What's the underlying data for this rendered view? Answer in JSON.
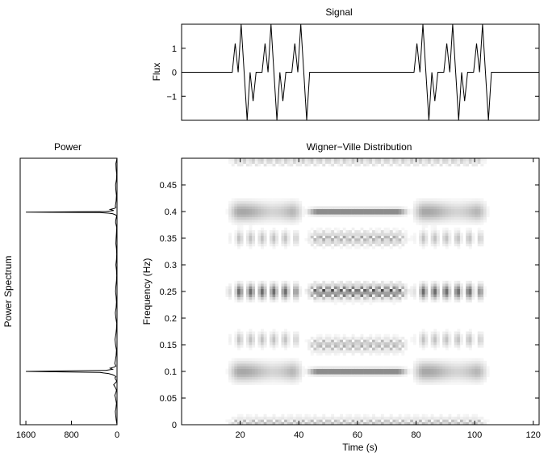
{
  "chart_data": [
    {
      "id": "signal",
      "type": "line",
      "title": "Signal",
      "xlabel": "",
      "ylabel": "Flux",
      "xlim": [
        0,
        120
      ],
      "ylim": [
        -2,
        2
      ],
      "yticks": [
        -1,
        0,
        1
      ],
      "yticklabels": [
        "−1",
        "0",
        "1"
      ],
      "x": [
        0,
        17,
        18,
        19,
        20,
        21,
        22,
        23,
        24,
        25,
        26,
        27,
        28,
        29,
        30,
        31,
        32,
        33,
        34,
        35,
        36,
        37,
        38,
        39,
        40,
        41,
        42,
        43,
        78,
        79,
        80,
        81,
        82,
        83,
        84,
        85,
        86,
        87,
        88,
        89,
        90,
        91,
        92,
        93,
        94,
        95,
        96,
        97,
        98,
        99,
        100,
        101,
        102,
        103,
        104,
        120
      ],
      "values": [
        0,
        0,
        1.2,
        0,
        2,
        0,
        -2,
        0,
        -1.2,
        0,
        0,
        0,
        1.2,
        0,
        2,
        0,
        -2,
        0,
        -1.2,
        0,
        0,
        0,
        1.2,
        0,
        2,
        0,
        -2,
        0,
        0,
        1.2,
        0,
        2,
        0,
        -2,
        0,
        -1.2,
        0,
        0,
        0,
        1.2,
        0,
        2,
        0,
        -2,
        0,
        -1.2,
        0,
        0,
        0,
        1.2,
        0,
        2,
        0,
        -2,
        0,
        0
      ]
    },
    {
      "id": "power",
      "type": "line",
      "title": "Power",
      "xlabel": "",
      "ylabel": "Power Spectrum",
      "xlim": [
        1700,
        0
      ],
      "ylim": [
        0,
        0.5
      ],
      "xticks": [
        1600,
        800,
        0
      ],
      "xticklabels": [
        "1600",
        "800",
        "0"
      ],
      "power": [
        0,
        15,
        25,
        30,
        20,
        10,
        25,
        40,
        20,
        10,
        30,
        60,
        15,
        5,
        25,
        35,
        20,
        40,
        80,
        150,
        300,
        1600,
        200,
        80,
        120,
        50,
        20,
        40,
        30,
        15,
        10,
        25,
        35,
        20,
        10,
        5,
        20,
        30,
        15,
        10,
        15,
        25,
        20,
        10,
        5,
        10,
        20,
        10,
        5,
        10,
        20,
        15,
        10,
        5,
        15,
        25,
        20,
        10,
        5,
        30,
        80,
        150,
        300,
        1600,
        200,
        60,
        120,
        40,
        20,
        30,
        15,
        10,
        20,
        25,
        10,
        5,
        15,
        20,
        10,
        0
      ],
      "frequency": [
        0,
        0.01,
        0.02,
        0.025,
        0.03,
        0.04,
        0.05,
        0.055,
        0.06,
        0.065,
        0.07,
        0.075,
        0.08,
        0.082,
        0.085,
        0.088,
        0.09,
        0.092,
        0.094,
        0.096,
        0.098,
        0.1,
        0.102,
        0.104,
        0.106,
        0.108,
        0.11,
        0.115,
        0.12,
        0.13,
        0.14,
        0.15,
        0.16,
        0.17,
        0.18,
        0.19,
        0.2,
        0.21,
        0.22,
        0.23,
        0.24,
        0.25,
        0.26,
        0.27,
        0.28,
        0.29,
        0.3,
        0.31,
        0.32,
        0.33,
        0.34,
        0.35,
        0.36,
        0.37,
        0.375,
        0.38,
        0.385,
        0.39,
        0.392,
        0.394,
        0.396,
        0.397,
        0.398,
        0.399,
        0.4,
        0.402,
        0.404,
        0.406,
        0.408,
        0.41,
        0.42,
        0.43,
        0.44,
        0.45,
        0.46,
        0.47,
        0.48,
        0.49,
        0.495,
        0.5
      ]
    },
    {
      "id": "wvd",
      "type": "heatmap",
      "title": "Wigner−Ville Distribution",
      "xlabel": "Time (s)",
      "ylabel": "Frequency (Hz)",
      "xlim": [
        0,
        122
      ],
      "ylim": [
        0,
        0.5
      ],
      "xticks": [
        20,
        40,
        60,
        80,
        100,
        120
      ],
      "yticks": [
        0,
        0.05,
        0.1,
        0.15,
        0.2,
        0.25,
        0.3,
        0.35,
        0.4,
        0.45
      ],
      "yticklabels": [
        "0",
        "0.05",
        "0.1",
        "0.15",
        "0.2",
        "0.25",
        "0.3",
        "0.35",
        "0.4",
        "0.45"
      ],
      "colormap": "gray (darker = higher)",
      "bands": [
        {
          "freq": 0.1,
          "t_start": 15,
          "t_end": 42,
          "peak": 0.35,
          "pattern": "smooth"
        },
        {
          "freq": 0.1,
          "t_start": 78,
          "t_end": 105,
          "peak": 0.35,
          "pattern": "smooth"
        },
        {
          "freq": 0.1,
          "t_start": 42,
          "t_end": 78,
          "peak": 0.55,
          "pattern": "thin"
        },
        {
          "freq": 0.4,
          "t_start": 15,
          "t_end": 42,
          "peak": 0.35,
          "pattern": "smooth"
        },
        {
          "freq": 0.4,
          "t_start": 78,
          "t_end": 105,
          "peak": 0.35,
          "pattern": "smooth"
        },
        {
          "freq": 0.4,
          "t_start": 42,
          "t_end": 78,
          "peak": 0.55,
          "pattern": "thin"
        },
        {
          "freq": 0.16,
          "t_start": 15,
          "t_end": 42,
          "peak": 0.25,
          "pattern": "striped"
        },
        {
          "freq": 0.16,
          "t_start": 78,
          "t_end": 105,
          "peak": 0.25,
          "pattern": "striped"
        },
        {
          "freq": 0.35,
          "t_start": 15,
          "t_end": 42,
          "peak": 0.25,
          "pattern": "striped"
        },
        {
          "freq": 0.35,
          "t_start": 78,
          "t_end": 105,
          "peak": 0.25,
          "pattern": "striped"
        },
        {
          "freq": 0.25,
          "t_start": 15,
          "t_end": 42,
          "peak": 0.6,
          "pattern": "striped"
        },
        {
          "freq": 0.25,
          "t_start": 78,
          "t_end": 105,
          "peak": 0.6,
          "pattern": "striped"
        },
        {
          "freq": 0.25,
          "t_start": 42,
          "t_end": 78,
          "peak": 0.8,
          "pattern": "checker"
        },
        {
          "freq": 0.15,
          "t_start": 42,
          "t_end": 78,
          "peak": 0.4,
          "pattern": "checker"
        },
        {
          "freq": 0.35,
          "t_start": 42,
          "t_end": 78,
          "peak": 0.4,
          "pattern": "checker"
        },
        {
          "freq": 0.0,
          "t_start": 15,
          "t_end": 105,
          "peak": 0.4,
          "pattern": "checker"
        },
        {
          "freq": 0.5,
          "t_start": 15,
          "t_end": 105,
          "peak": 0.3,
          "pattern": "checker"
        }
      ]
    }
  ]
}
